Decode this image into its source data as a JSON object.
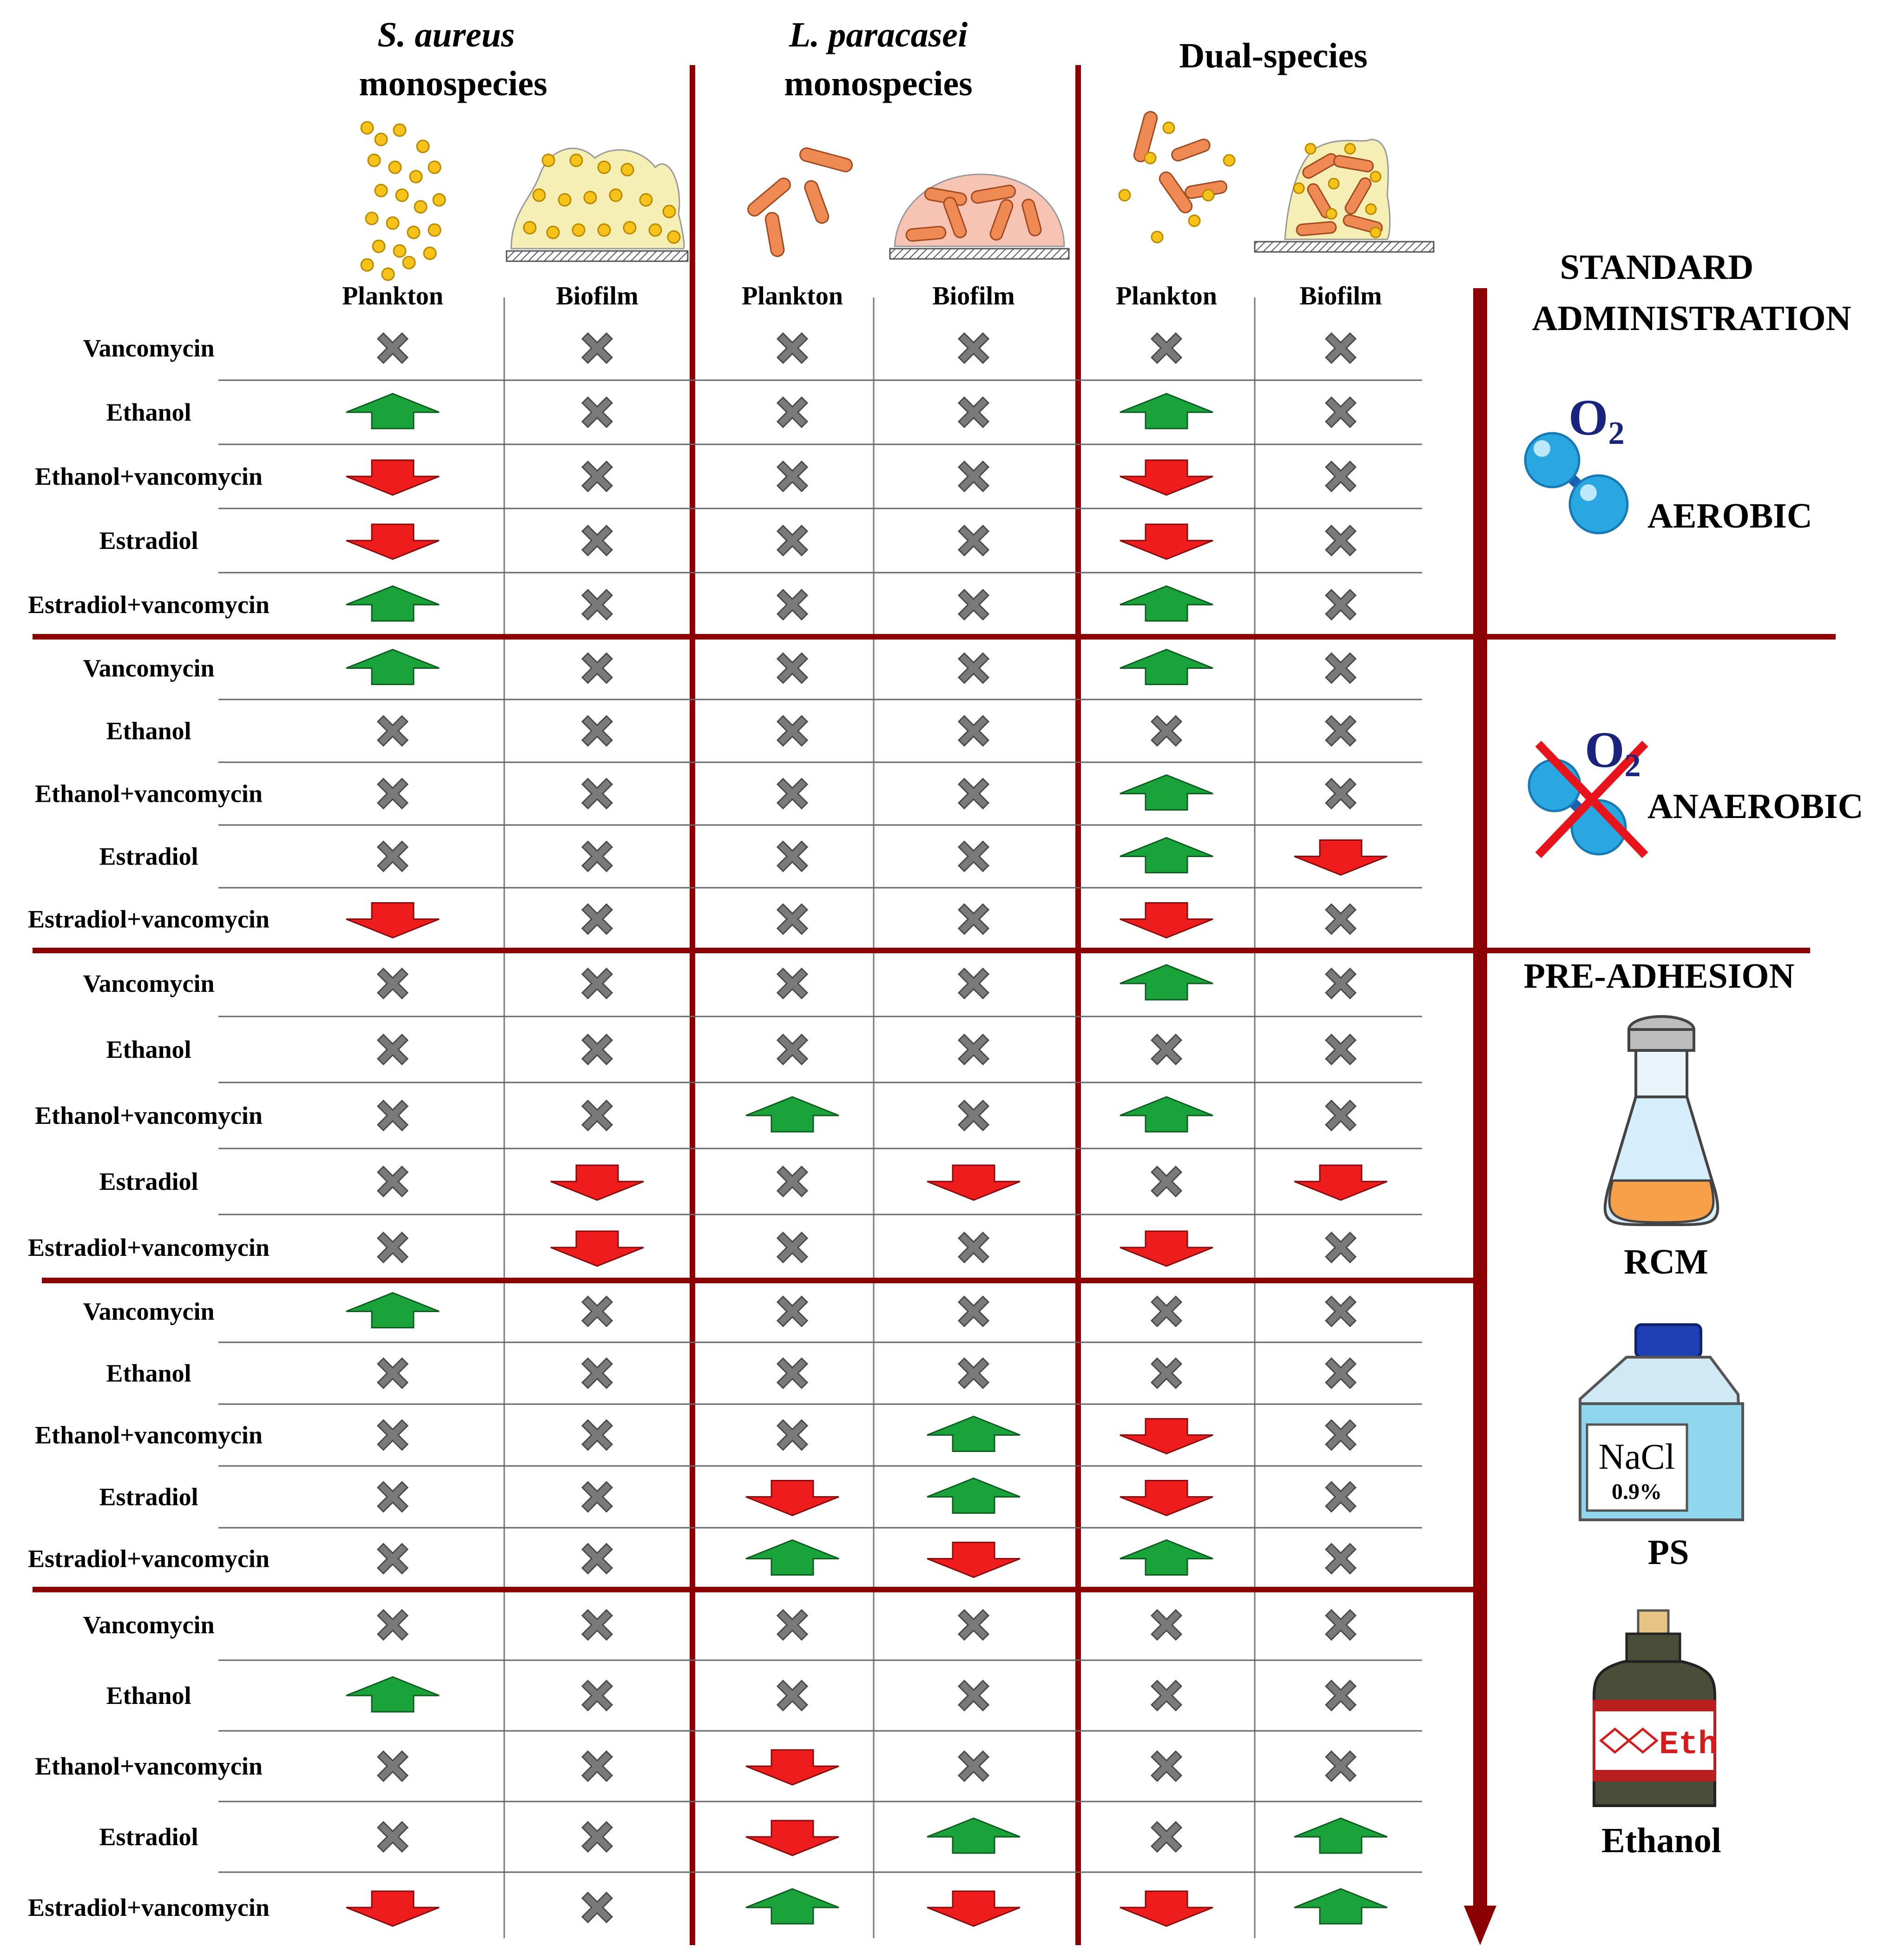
{
  "header": {
    "groups": [
      {
        "name_italic": "S. aureus",
        "name": "monospecies"
      },
      {
        "name_italic": "L. paracasei",
        "name": "monospecies"
      },
      {
        "name_italic": "",
        "name": "Dual-species"
      }
    ],
    "subcolumns": [
      "Plankton",
      "Biofilm",
      "Plankton",
      "Biofilm",
      "Plankton",
      "Biofilm"
    ]
  },
  "right_panel": {
    "standard_title_1": "STANDARD",
    "standard_title_2": "ADMINISTRATION",
    "o2_label": "O",
    "o2_subscript": "2",
    "aerobic": "AEROBIC",
    "anaerobic": "ANAEROBIC",
    "pre_adhesion_title": "PRE-ADHESION",
    "rcm": "RCM",
    "ps": "PS",
    "nacl_label": "NaCl",
    "nacl_conc": "0.9%",
    "ethanol": "Ethanol",
    "eth_label": "Eth"
  },
  "legend_icons": {
    "x": "x-mark-icon (grey, no change)",
    "up": "green-up-arrow-icon (increase)",
    "down": "red-down-arrow-icon (decrease)"
  },
  "colors": {
    "divider": "#8b0000",
    "up_arrow": "#1aa33a",
    "down_arrow": "#ee1c1c",
    "x_mark": "#7a7a7a"
  },
  "sections": [
    {
      "condition": "AEROBIC",
      "rows": [
        {
          "label": "Vancomycin",
          "values": [
            "x",
            "x",
            "x",
            "x",
            "x",
            "x"
          ]
        },
        {
          "label": "Ethanol",
          "values": [
            "up",
            "x",
            "x",
            "x",
            "up",
            "x"
          ]
        },
        {
          "label": "Ethanol+vancomycin",
          "values": [
            "down",
            "x",
            "x",
            "x",
            "down",
            "x"
          ]
        },
        {
          "label": "Estradiol",
          "values": [
            "down",
            "x",
            "x",
            "x",
            "down",
            "x"
          ]
        },
        {
          "label": "Estradiol+vancomycin",
          "values": [
            "up",
            "x",
            "x",
            "x",
            "up",
            "x"
          ]
        }
      ]
    },
    {
      "condition": "ANAEROBIC",
      "rows": [
        {
          "label": "Vancomycin",
          "values": [
            "up",
            "x",
            "x",
            "x",
            "up",
            "x"
          ]
        },
        {
          "label": "Ethanol",
          "values": [
            "x",
            "x",
            "x",
            "x",
            "x",
            "x"
          ]
        },
        {
          "label": "Ethanol+vancomycin",
          "values": [
            "x",
            "x",
            "x",
            "x",
            "up",
            "x"
          ]
        },
        {
          "label": "Estradiol",
          "values": [
            "x",
            "x",
            "x",
            "x",
            "up",
            "down"
          ]
        },
        {
          "label": "Estradiol+vancomycin",
          "values": [
            "down",
            "x",
            "x",
            "x",
            "down",
            "x"
          ]
        }
      ]
    },
    {
      "condition": "RCM",
      "rows": [
        {
          "label": "Vancomycin",
          "values": [
            "x",
            "x",
            "x",
            "x",
            "up",
            "x"
          ]
        },
        {
          "label": "Ethanol",
          "values": [
            "x",
            "x",
            "x",
            "x",
            "x",
            "x"
          ]
        },
        {
          "label": "Ethanol+vancomycin",
          "values": [
            "x",
            "x",
            "up",
            "x",
            "up",
            "x"
          ]
        },
        {
          "label": "Estradiol",
          "values": [
            "x",
            "down",
            "x",
            "down",
            "x",
            "down"
          ]
        },
        {
          "label": "Estradiol+vancomycin",
          "values": [
            "x",
            "down",
            "x",
            "x",
            "down",
            "x"
          ]
        }
      ]
    },
    {
      "condition": "PS",
      "rows": [
        {
          "label": "Vancomycin",
          "values": [
            "up",
            "x",
            "x",
            "x",
            "x",
            "x"
          ]
        },
        {
          "label": "Ethanol",
          "values": [
            "x",
            "x",
            "x",
            "x",
            "x",
            "x"
          ]
        },
        {
          "label": "Ethanol+vancomycin",
          "values": [
            "x",
            "x",
            "x",
            "up",
            "down",
            "x"
          ]
        },
        {
          "label": "Estradiol",
          "values": [
            "x",
            "x",
            "down",
            "up",
            "down",
            "x"
          ]
        },
        {
          "label": "Estradiol+vancomycin",
          "values": [
            "x",
            "x",
            "up",
            "down",
            "up",
            "x"
          ]
        }
      ]
    },
    {
      "condition": "Ethanol",
      "rows": [
        {
          "label": "Vancomycin",
          "values": [
            "x",
            "x",
            "x",
            "x",
            "x",
            "x"
          ]
        },
        {
          "label": "Ethanol",
          "values": [
            "up",
            "x",
            "x",
            "x",
            "x",
            "x"
          ]
        },
        {
          "label": "Ethanol+vancomycin",
          "values": [
            "x",
            "x",
            "down",
            "x",
            "x",
            "x"
          ]
        },
        {
          "label": "Estradiol",
          "values": [
            "x",
            "x",
            "down",
            "up",
            "x",
            "up"
          ]
        },
        {
          "label": "Estradiol+vancomycin",
          "values": [
            "down",
            "x",
            "up",
            "down",
            "down",
            "up"
          ]
        }
      ]
    }
  ]
}
